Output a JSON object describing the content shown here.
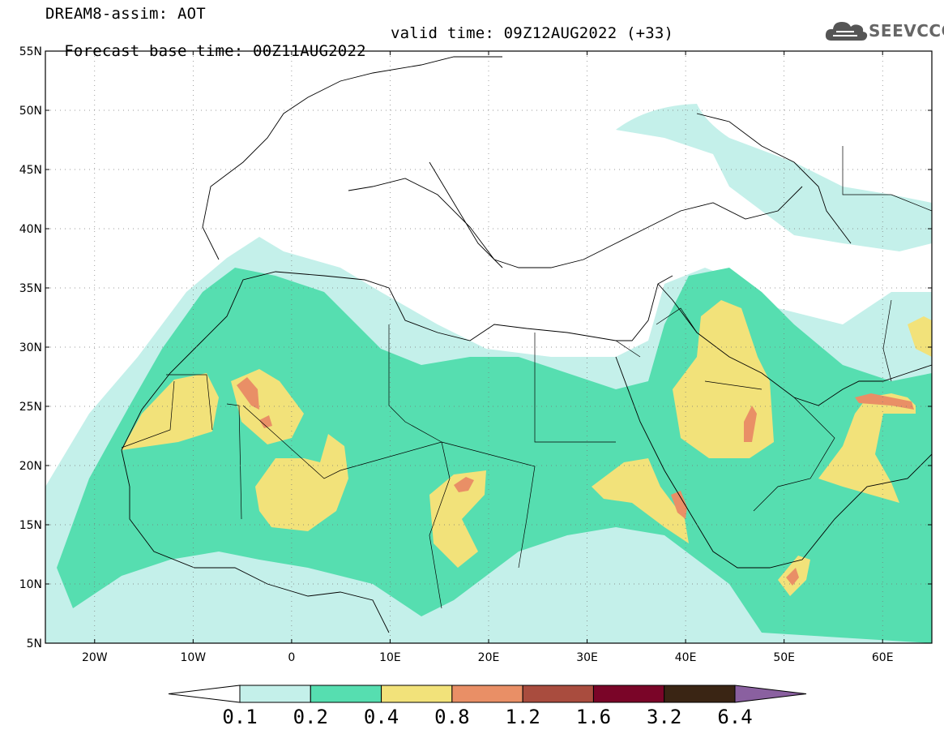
{
  "header": {
    "line1": "DREAM8-assim: AOT",
    "base_time": "Forecast base time: 00Z11AUG2022",
    "valid_time": "valid time: 09Z12AUG2022 (+33)"
  },
  "logo": {
    "text": "SEEVCCC",
    "icon": "cloud-icon"
  },
  "map": {
    "lon_range": [
      -25,
      65
    ],
    "lat_range": [
      5,
      55
    ],
    "lat_ticks": [
      "55N",
      "50N",
      "45N",
      "40N",
      "35N",
      "30N",
      "25N",
      "20N",
      "15N",
      "10N",
      "5N"
    ],
    "lon_ticks": [
      "20W",
      "10W",
      "0",
      "10E",
      "20E",
      "30E",
      "40E",
      "50E",
      "60E"
    ],
    "grid": "dotted"
  },
  "colorbar": {
    "labels": [
      "0.1",
      "0.2",
      "0.4",
      "0.8",
      "1.2",
      "1.6",
      "3.2",
      "6.4"
    ],
    "colors": [
      "#ffffff",
      "#c4f0ea",
      "#56deb0",
      "#f2e27a",
      "#e98f66",
      "#a94c3e",
      "#7a0528",
      "#3a2514",
      "#8a60a0"
    ]
  }
}
